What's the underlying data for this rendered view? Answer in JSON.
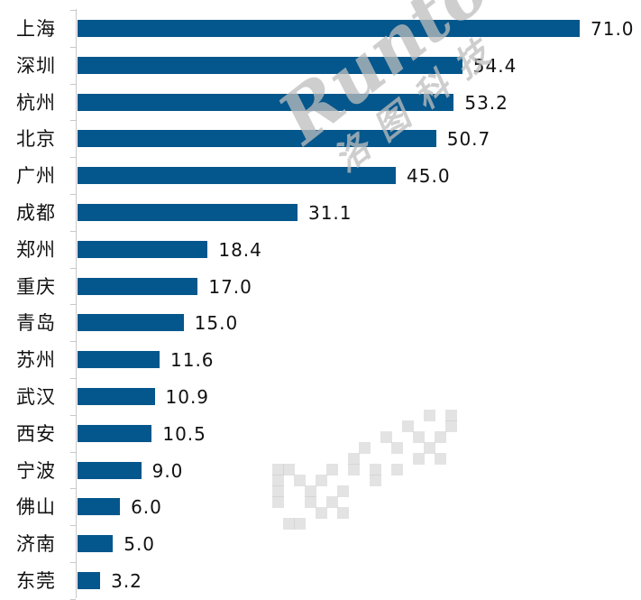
{
  "header": {
    "title_clipped": ""
  },
  "watermark": {
    "latin": "Runto",
    "chinese": "洛图科技"
  },
  "colors": {
    "bar": "#04578c",
    "axis": "#c8c8c8",
    "text": "#111111"
  },
  "chart_data": {
    "type": "bar",
    "orientation": "horizontal",
    "title": "",
    "xlabel": "",
    "ylabel": "",
    "categories": [
      "上海",
      "深圳",
      "杭州",
      "北京",
      "广州",
      "成都",
      "郑州",
      "重庆",
      "青岛",
      "苏州",
      "武汉",
      "西安",
      "宁波",
      "佛山",
      "济南",
      "东莞"
    ],
    "values": [
      71.0,
      54.4,
      53.2,
      50.7,
      45.0,
      31.1,
      18.4,
      17.0,
      15.0,
      11.6,
      10.9,
      10.5,
      9.0,
      6.0,
      5.0,
      3.2
    ],
    "labels": [
      "71.0",
      "54.4",
      "53.2",
      "50.7",
      "45.0",
      "31.1",
      "18.4",
      "17.0",
      "15.0",
      "11.6",
      "10.9",
      "10.5",
      "9.0",
      "6.0",
      "5.0",
      "3.2"
    ],
    "xlim": [
      0,
      71
    ],
    "grid": false,
    "legend": null,
    "data_labels": true
  }
}
